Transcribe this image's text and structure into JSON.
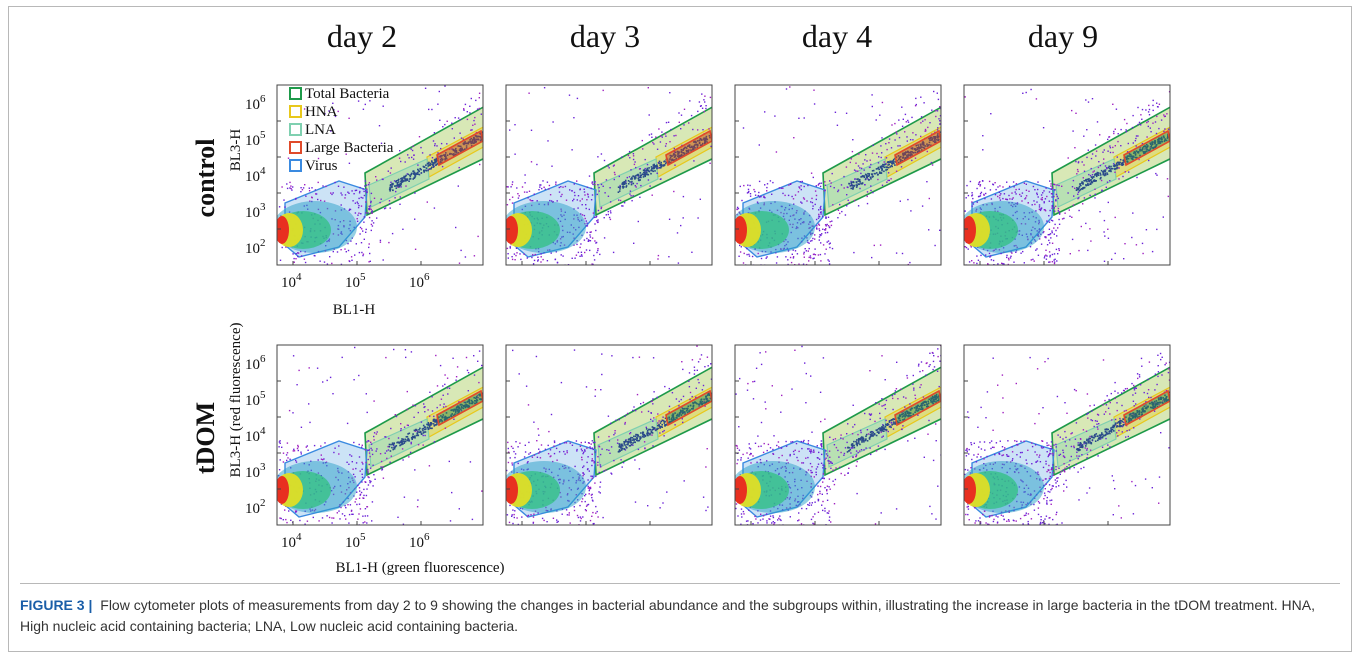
{
  "figure": {
    "columns": [
      {
        "day_label": "day 2"
      },
      {
        "day_label": "day 3"
      },
      {
        "day_label": "day 4"
      },
      {
        "day_label": "day 9"
      }
    ],
    "rows": [
      {
        "row_label": "control"
      },
      {
        "row_label": "tDOM"
      }
    ],
    "y_tick_labels": [
      {
        "base": "10",
        "exp": "6"
      },
      {
        "base": "10",
        "exp": "5"
      },
      {
        "base": "10",
        "exp": "4"
      },
      {
        "base": "10",
        "exp": "3"
      },
      {
        "base": "10",
        "exp": "2"
      }
    ],
    "x_tick_labels": [
      {
        "base": "10",
        "exp": "4"
      },
      {
        "base": "10",
        "exp": "5"
      },
      {
        "base": "10",
        "exp": "6"
      }
    ],
    "axis_titles": {
      "control_y": "BL3-H",
      "control_x": "BL1-H",
      "tdom_y": "BL3-H (red fluorescence)",
      "tdom_x": "BL1-H  (green fluorescence)"
    },
    "legend": [
      {
        "label": "Total Bacteria",
        "color": "#1e9a4a"
      },
      {
        "label": "HNA",
        "color": "#e8c81c"
      },
      {
        "label": "LNA",
        "color": "#7fd0b0"
      },
      {
        "label": "Large Bacteria",
        "color": "#e04a2a"
      },
      {
        "label": "Virus",
        "color": "#3a8ae0"
      }
    ]
  },
  "caption": {
    "label": "FIGURE 3 |",
    "text": "Flow cytometer plots of measurements from day 2 to 9 showing the changes in bacterial abundance and the subgroups within, illustrating the increase in large bacteria in the tDOM treatment. HNA, High nucleic acid containing bacteria; LNA, Low nucleic acid containing bacteria."
  }
}
